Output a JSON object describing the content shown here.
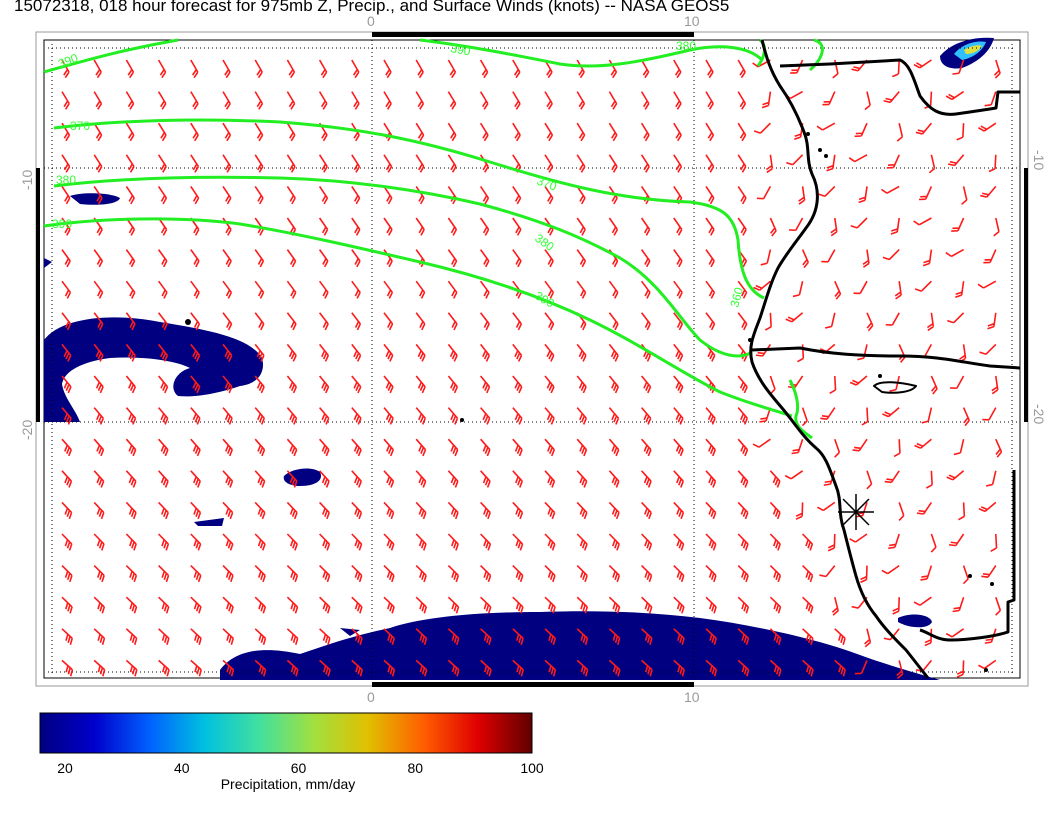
{
  "title": "15072318, 018 hour forecast for 975mb Z, Precip., and Surface Winds (knots) -- NASA GEOS5",
  "map": {
    "lon_labels": [
      "0",
      "10"
    ],
    "lat_labels": [
      "-10",
      "-20"
    ],
    "contour_labels": [
      "390",
      "390",
      "370",
      "380",
      "370",
      "380",
      "390",
      "380",
      "360",
      "390"
    ],
    "colors": {
      "wind_barbs": "#ff1a1a",
      "contours": "#22ee22",
      "coastline": "#000000",
      "precip_low": "#000080"
    }
  },
  "colorbar": {
    "ticks": [
      "20",
      "40",
      "60",
      "80",
      "100"
    ],
    "label": "Precipitation, mm/day",
    "stops": [
      "#000080",
      "#0000cc",
      "#0060ff",
      "#00c0e0",
      "#40e0a0",
      "#a0e040",
      "#e0c000",
      "#ff6000",
      "#e00000",
      "#600000"
    ]
  }
}
